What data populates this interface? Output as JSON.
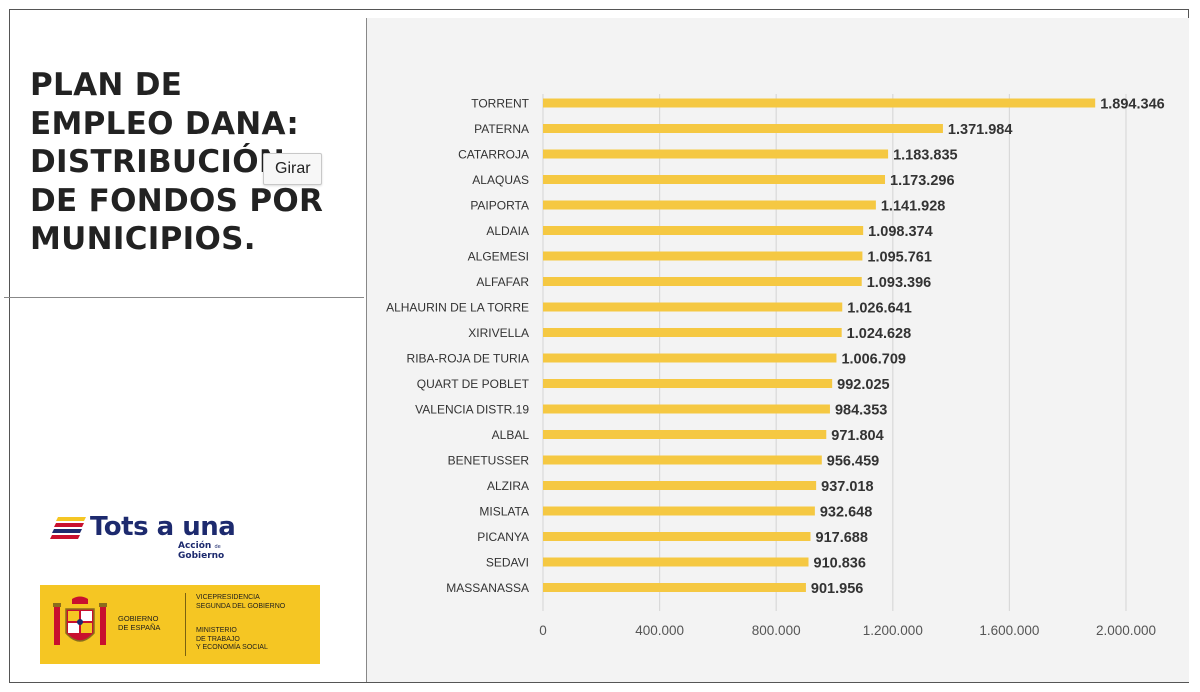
{
  "title": "PLAN DE\nEMPLEO DANA:\nDISTRIBUCIÓN\nDE FONDOS POR\nMUNICIPIOS.",
  "tooltip": "Girar",
  "logo": {
    "tots_a_una": "Tots a una",
    "accion_line1": "Acción",
    "accion_de": "de",
    "accion_line2": "Gobierno"
  },
  "government": {
    "name": "GOBIERNO\nDE ESPAÑA",
    "vicepresidencia": "VICEPRESIDENCIA\nSEGUNDA DEL GOBIERNO",
    "ministerio": "MINISTERIO\nDE TRABAJO\nY ECONOMÍA SOCIAL"
  },
  "colors": {
    "bar": "#f5c842",
    "brand_blue": "#1d2a6e",
    "gov_yellow": "#f5c623",
    "gov_red": "#c8102e",
    "grid": "#d9d9d9"
  },
  "chart_data": {
    "type": "bar",
    "orientation": "horizontal",
    "categories": [
      "TORRENT",
      "PATERNA",
      "CATARROJA",
      "ALAQUAS",
      "PAIPORTA",
      "ALDAIA",
      "ALGEMESI",
      "ALFAFAR",
      "ALHAURIN DE LA TORRE",
      "XIRIVELLA",
      "RIBA-ROJA DE TURIA",
      "QUART DE POBLET",
      "VALENCIA DISTR.19",
      "ALBAL",
      "BENETUSSER",
      "ALZIRA",
      "MISLATA",
      "PICANYA",
      "SEDAVI",
      "MASSANASSA"
    ],
    "values": [
      1894346,
      1371984,
      1183835,
      1173296,
      1141928,
      1098374,
      1095761,
      1093396,
      1026641,
      1024628,
      1006709,
      992025,
      984353,
      971804,
      956459,
      937018,
      932648,
      917688,
      910836,
      901956
    ],
    "value_labels": [
      "1.894.346",
      "1.371.984",
      "1.183.835",
      "1.173.296",
      "1.141.928",
      "1.098.374",
      "1.095.761",
      "1.093.396",
      "1.026.641",
      "1.024.628",
      "1.006.709",
      "992.025",
      "984.353",
      "971.804",
      "956.459",
      "937.018",
      "932.648",
      "917.688",
      "910.836",
      "901.956"
    ],
    "xticks": [
      0,
      400000,
      800000,
      1200000,
      1600000,
      2000000
    ],
    "xtick_labels": [
      "0",
      "400.000",
      "800.000",
      "1.200.000",
      "1.600.000",
      "2.000.000"
    ],
    "xlim": [
      0,
      2000000
    ],
    "grid": true,
    "legend": "none",
    "title": "",
    "xlabel": "",
    "ylabel": ""
  }
}
